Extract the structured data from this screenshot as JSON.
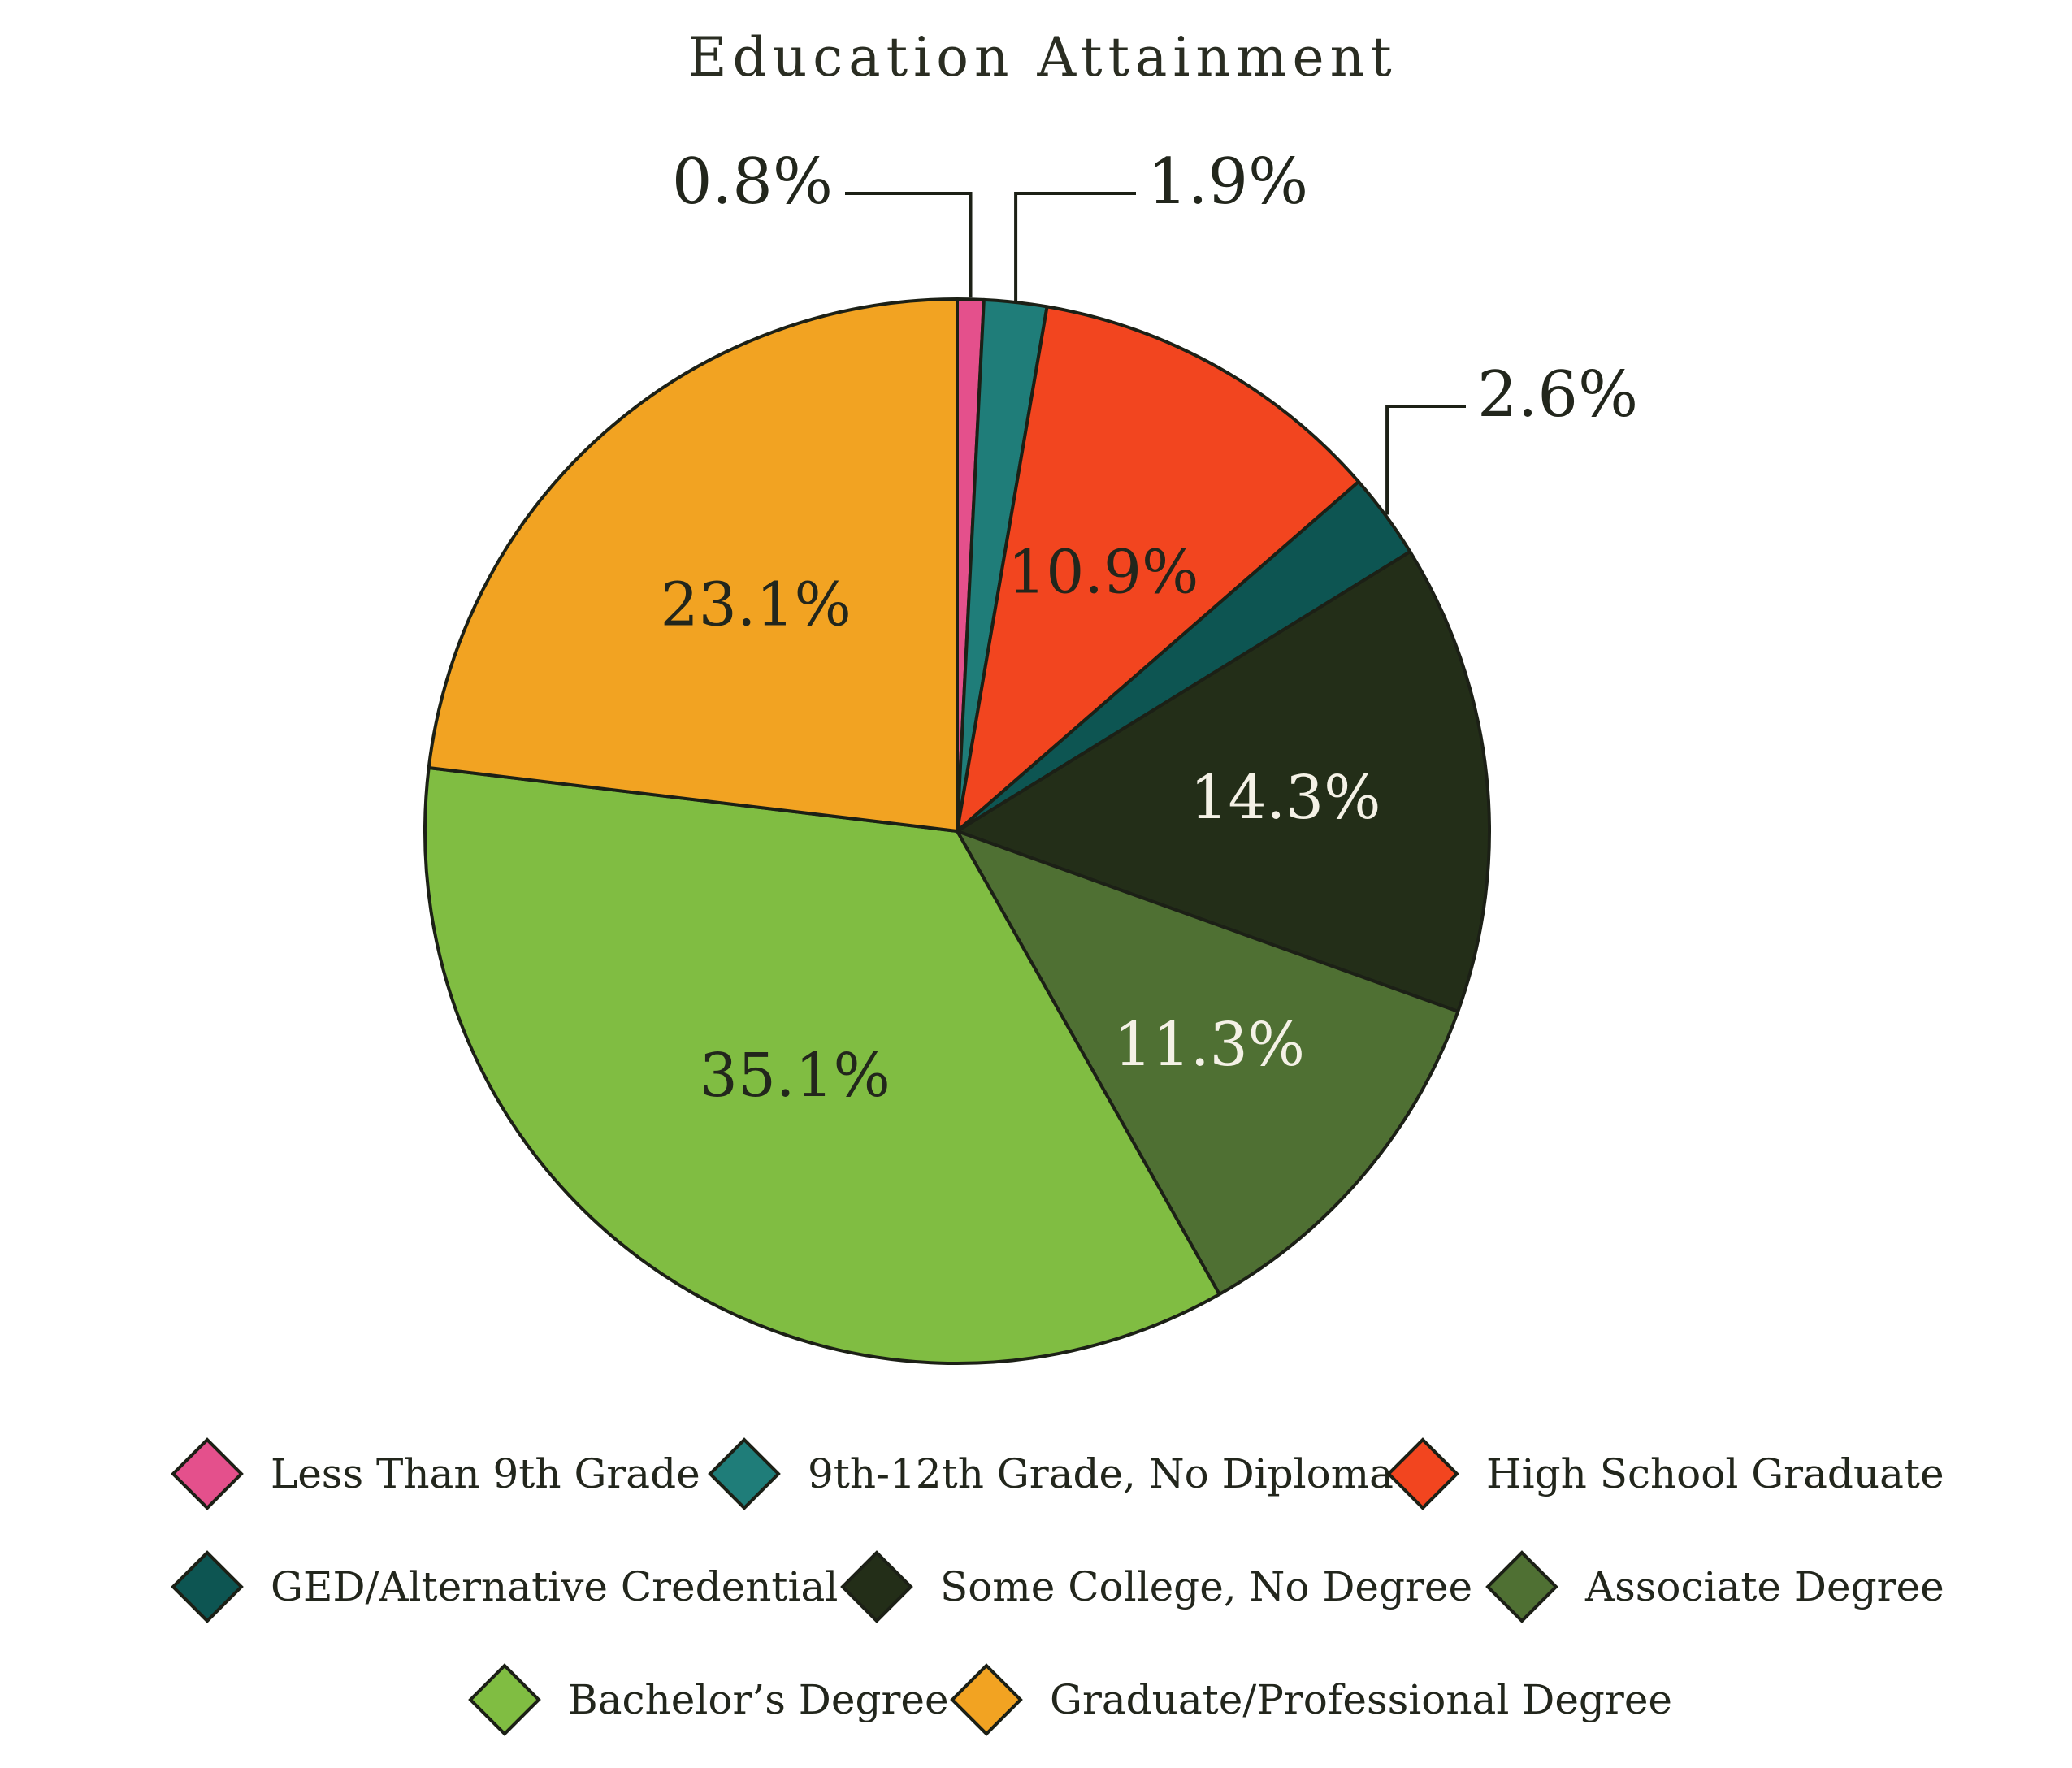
{
  "chart_data": {
    "type": "pie",
    "title": "Education Attainment",
    "slices": [
      {
        "label": "Less Than 9th Grade",
        "value": 0.8,
        "display": "0.8%",
        "color": "#e4508c",
        "label_color": "#22261c",
        "callout": true
      },
      {
        "label": "9th-12th Grade, No Diploma",
        "value": 1.9,
        "display": "1.9%",
        "color": "#1f7d79",
        "label_color": "#22261c",
        "callout": true
      },
      {
        "label": "High School Graduate",
        "value": 10.9,
        "display": "10.9%",
        "color": "#f2451f",
        "label_color": "#22261c",
        "callout": false
      },
      {
        "label": "GED/Alternative Credential",
        "value": 2.6,
        "display": "2.6%",
        "color": "#0d5552",
        "label_color": "#22261c",
        "callout": true
      },
      {
        "label": "Some College, No Degree",
        "value": 14.3,
        "display": "14.3%",
        "color": "#232e18",
        "label_color": "#f4f1e6",
        "callout": false
      },
      {
        "label": "Associate Degree",
        "value": 11.3,
        "display": "11.3%",
        "color": "#4f7033",
        "label_color": "#f4f1e6",
        "callout": false
      },
      {
        "label": "Bachelor’s Degree",
        "value": 35.1,
        "display": "35.1%",
        "color": "#80bd42",
        "label_color": "#22261c",
        "callout": false
      },
      {
        "label": "Graduate/Professional Degree",
        "value": 23.1,
        "display": "23.1%",
        "color": "#f2a322",
        "label_color": "#22261c",
        "callout": false
      }
    ],
    "legend_position": "bottom"
  }
}
